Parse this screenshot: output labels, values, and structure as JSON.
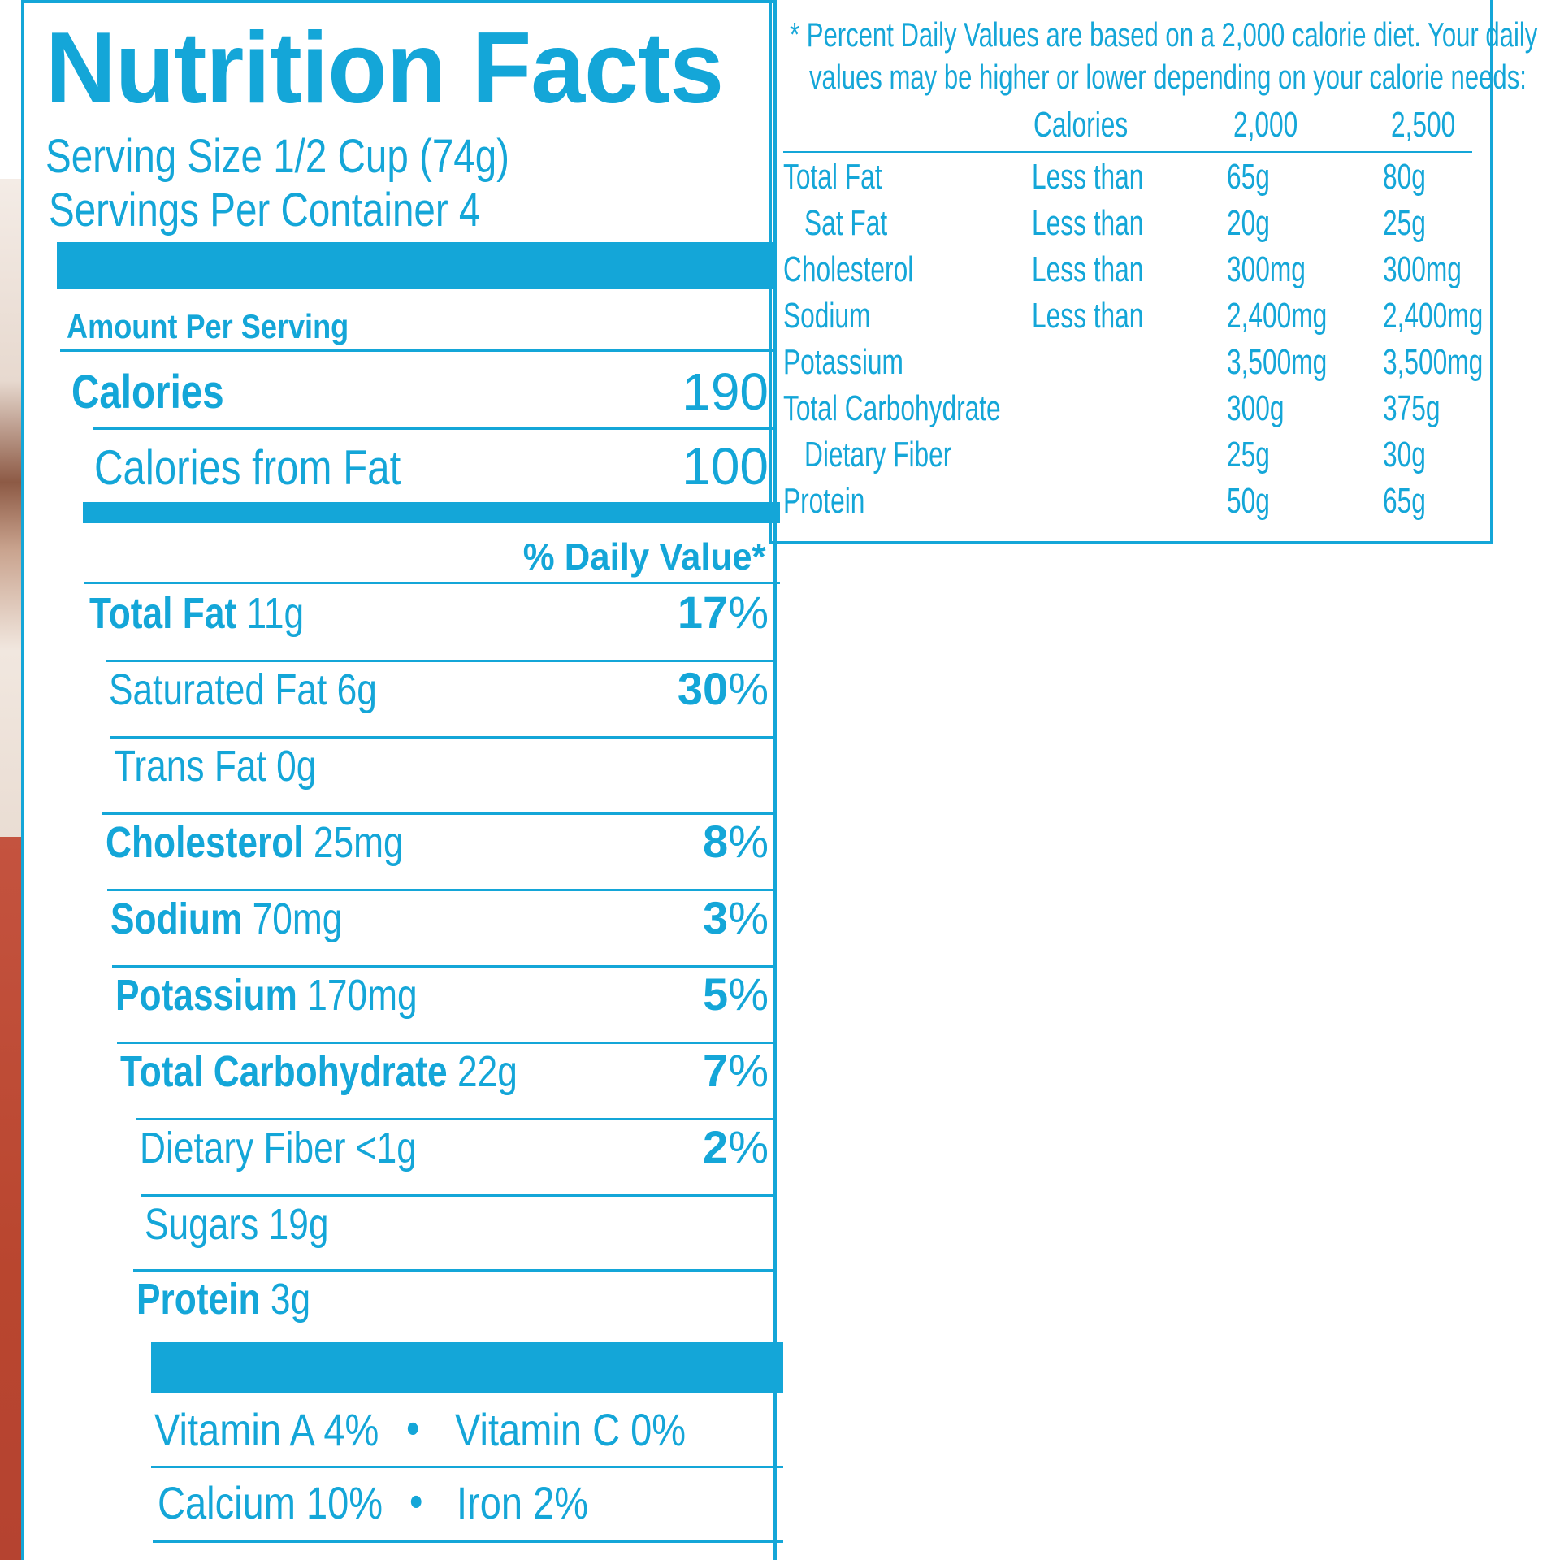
{
  "title": "Nutrition Facts",
  "serving_size": "Serving Size 1/2 Cup (74g)",
  "servings_per_container": "Servings Per Container 4",
  "amount_per_serving": "Amount Per Serving",
  "calories": {
    "label": "Calories",
    "value": "190"
  },
  "calories_from_fat": {
    "label": "Calories from Fat",
    "value": "100"
  },
  "daily_value_header": "% Daily Value*",
  "nutrients": [
    {
      "name": "Total Fat",
      "amount": "11g",
      "dv": "17",
      "bold": true
    },
    {
      "name": "Saturated Fat",
      "amount": "6g",
      "dv": "30",
      "bold": false
    },
    {
      "name": "Trans Fat",
      "amount": "0g",
      "dv": "",
      "bold": false
    },
    {
      "name": "Cholesterol",
      "amount": "25mg",
      "dv": "8",
      "bold": true
    },
    {
      "name": "Sodium",
      "amount": "70mg",
      "dv": "3",
      "bold": true
    },
    {
      "name": "Potassium",
      "amount": "170mg",
      "dv": "5",
      "bold": true
    },
    {
      "name": "Total Carbohydrate",
      "amount": "22g",
      "dv": "7",
      "bold": true
    },
    {
      "name": "Dietary Fiber",
      "amount": "<1g",
      "dv": "2",
      "bold": false
    },
    {
      "name": "Sugars",
      "amount": "19g",
      "dv": "",
      "bold": false
    },
    {
      "name": "Protein",
      "amount": "3g",
      "dv": "",
      "bold": true
    }
  ],
  "percent_sign": "%",
  "vitamins": {
    "row1": {
      "a": "Vitamin A 4%",
      "b": "Vitamin C 0%"
    },
    "row2": {
      "a": "Calcium 10%",
      "b": "Iron 2%"
    },
    "bullet": "•"
  },
  "footnote": {
    "line1": "* Percent Daily Values are based on a 2,000 calorie diet. Your daily",
    "line2": "values may be higher or lower depending on your calorie needs:",
    "header": {
      "calories": "Calories",
      "c2000": "2,000",
      "c2500": "2,500"
    },
    "rows": [
      {
        "name": "Total Fat",
        "qual": "Less than",
        "v2000": "65g",
        "v2500": "80g",
        "indent": false
      },
      {
        "name": "Sat Fat",
        "qual": "Less than",
        "v2000": "20g",
        "v2500": "25g",
        "indent": true
      },
      {
        "name": "Cholesterol",
        "qual": "Less than",
        "v2000": "300mg",
        "v2500": "300mg",
        "indent": false
      },
      {
        "name": "Sodium",
        "qual": "Less than",
        "v2000": "2,400mg",
        "v2500": "2,400mg",
        "indent": false
      },
      {
        "name": "Potassium",
        "qual": "",
        "v2000": "3,500mg",
        "v2500": "3,500mg",
        "indent": false
      },
      {
        "name": "Total Carbohydrate",
        "qual": "",
        "v2000": "300g",
        "v2500": "375g",
        "indent": false
      },
      {
        "name": "Dietary Fiber",
        "qual": "",
        "v2000": "25g",
        "v2500": "30g",
        "indent": true
      },
      {
        "name": "Protein",
        "qual": "",
        "v2000": "50g",
        "v2500": "65g",
        "indent": false
      }
    ]
  },
  "colors": {
    "ink": "#14a6d8",
    "background": "#ffffff",
    "package_red": "#b9462f"
  }
}
